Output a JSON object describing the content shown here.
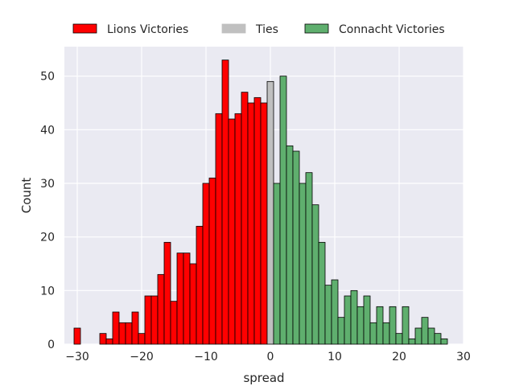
{
  "chart_data": {
    "type": "bar",
    "subtype": "histogram",
    "xlabel": "spread",
    "ylabel": "Count",
    "xlim": [
      -32,
      30
    ],
    "ylim": [
      0,
      55.5
    ],
    "xticks": [
      -30,
      -20,
      -10,
      0,
      10,
      20,
      30
    ],
    "yticks": [
      0,
      10,
      20,
      30,
      40,
      50
    ],
    "grid": true,
    "legend_position": "top",
    "bin_width": 1,
    "series": [
      {
        "name": "Lions Victories",
        "color": "#ff0000",
        "bins": [
          {
            "x": -30,
            "count": 3
          },
          {
            "x": -29,
            "count": 0
          },
          {
            "x": -28,
            "count": 0
          },
          {
            "x": -27,
            "count": 0
          },
          {
            "x": -26,
            "count": 2
          },
          {
            "x": -25,
            "count": 1
          },
          {
            "x": -24,
            "count": 6
          },
          {
            "x": -23,
            "count": 4
          },
          {
            "x": -22,
            "count": 4
          },
          {
            "x": -21,
            "count": 6
          },
          {
            "x": -20,
            "count": 2
          },
          {
            "x": -19,
            "count": 9
          },
          {
            "x": -18,
            "count": 9
          },
          {
            "x": -17,
            "count": 13
          },
          {
            "x": -16,
            "count": 19
          },
          {
            "x": -15,
            "count": 8
          },
          {
            "x": -14,
            "count": 17
          },
          {
            "x": -13,
            "count": 17
          },
          {
            "x": -12,
            "count": 15
          },
          {
            "x": -11,
            "count": 22
          },
          {
            "x": -10,
            "count": 30
          },
          {
            "x": -9,
            "count": 31
          },
          {
            "x": -8,
            "count": 43
          },
          {
            "x": -7,
            "count": 53
          },
          {
            "x": -6,
            "count": 42
          },
          {
            "x": -5,
            "count": 43
          },
          {
            "x": -4,
            "count": 47
          },
          {
            "x": -3,
            "count": 45
          },
          {
            "x": -2,
            "count": 46
          },
          {
            "x": -1,
            "count": 45
          }
        ]
      },
      {
        "name": "Ties",
        "color": "#c0c0c0",
        "bins": [
          {
            "x": 0,
            "count": 49
          }
        ]
      },
      {
        "name": "Connacht Victories",
        "color": "#5faf6e",
        "bins": [
          {
            "x": 1,
            "count": 30
          },
          {
            "x": 2,
            "count": 50
          },
          {
            "x": 3,
            "count": 37
          },
          {
            "x": 4,
            "count": 36
          },
          {
            "x": 5,
            "count": 30
          },
          {
            "x": 6,
            "count": 32
          },
          {
            "x": 7,
            "count": 26
          },
          {
            "x": 8,
            "count": 19
          },
          {
            "x": 9,
            "count": 11
          },
          {
            "x": 10,
            "count": 12
          },
          {
            "x": 11,
            "count": 5
          },
          {
            "x": 12,
            "count": 9
          },
          {
            "x": 13,
            "count": 10
          },
          {
            "x": 14,
            "count": 7
          },
          {
            "x": 15,
            "count": 9
          },
          {
            "x": 16,
            "count": 4
          },
          {
            "x": 17,
            "count": 7
          },
          {
            "x": 18,
            "count": 4
          },
          {
            "x": 19,
            "count": 7
          },
          {
            "x": 20,
            "count": 2
          },
          {
            "x": 21,
            "count": 7
          },
          {
            "x": 22,
            "count": 1
          },
          {
            "x": 23,
            "count": 3
          },
          {
            "x": 24,
            "count": 5
          },
          {
            "x": 25,
            "count": 3
          },
          {
            "x": 26,
            "count": 2
          },
          {
            "x": 27,
            "count": 1
          }
        ]
      }
    ]
  }
}
